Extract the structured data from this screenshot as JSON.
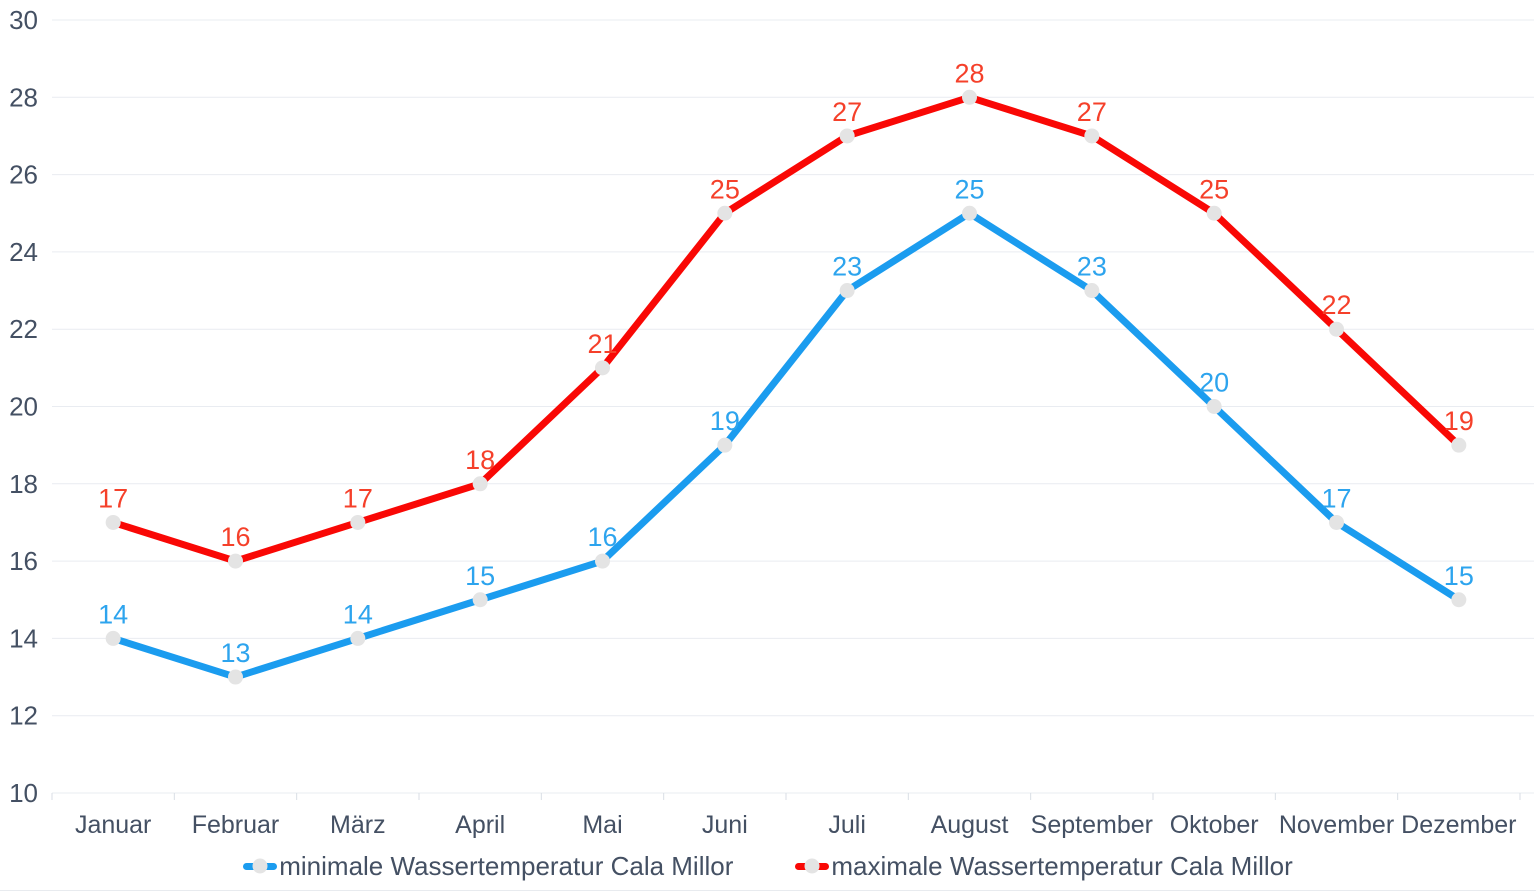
{
  "chart_data": {
    "type": "line",
    "title": "",
    "xlabel": "",
    "ylabel": "",
    "categories": [
      "Januar",
      "Februar",
      "März",
      "April",
      "Mai",
      "Juni",
      "Juli",
      "August",
      "September",
      "Oktober",
      "November",
      "Dezember"
    ],
    "series": [
      {
        "name": "minimale Wassertemperatur Cala Millor",
        "color": "#1b9cef",
        "label_color": "#2da4ee",
        "values": [
          14,
          13,
          14,
          15,
          16,
          19,
          23,
          25,
          23,
          20,
          17,
          15
        ]
      },
      {
        "name": "maximale Wassertemperatur Cala Millor",
        "color": "#f90805",
        "label_color": "#f5402a",
        "values": [
          17,
          16,
          17,
          18,
          21,
          25,
          27,
          28,
          27,
          25,
          22,
          19
        ]
      }
    ],
    "ylim": [
      10,
      30
    ],
    "ytick_step": 2,
    "y_tick_labels": [
      "10",
      "12",
      "14",
      "16",
      "18",
      "20",
      "22",
      "24",
      "26",
      "28",
      "30"
    ],
    "grid": "horizontal",
    "legend_position": "bottom",
    "data_labels": true,
    "marker_color": "#e4e4e4",
    "grid_color": "#e9ecf1",
    "tick_color": "#d9dee5",
    "axis_text_color": "#445063",
    "baseline_color": "#e8ebef"
  }
}
